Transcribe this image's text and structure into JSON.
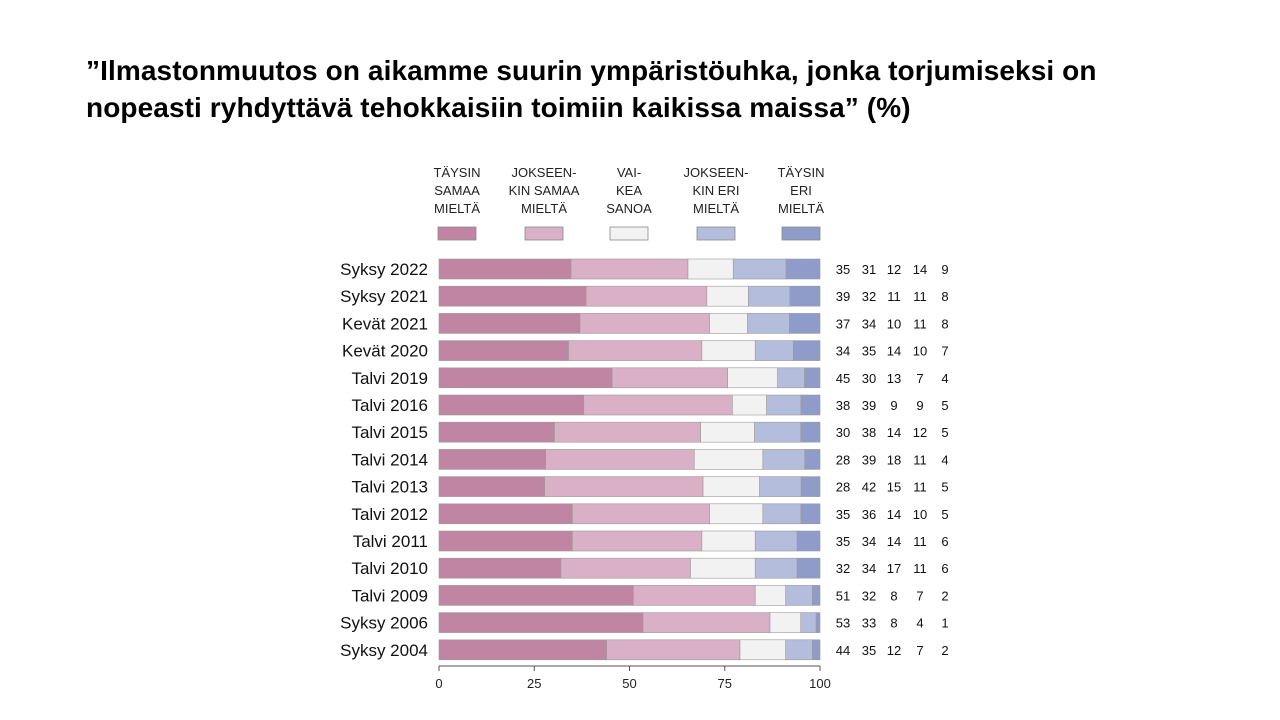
{
  "title": {
    "line1": "”Ilmastonmuutos on aikamme suurin ympäristöuhka, jonka torjumiseksi on",
    "line2": "nopeasti ryhdyttävä tehokkaisiin toimiin kaikissa maissa” (%)"
  },
  "chart_data": {
    "type": "bar",
    "orientation": "horizontal",
    "stacked": true,
    "categories": [
      "Syksy 2022",
      "Syksy 2021",
      "Kevät 2021",
      "Kevät 2020",
      "Talvi 2019",
      "Talvi 2016",
      "Talvi 2015",
      "Talvi 2014",
      "Talvi 2013",
      "Talvi 2012",
      "Talvi 2011",
      "Talvi 2010",
      "Talvi 2009",
      "Syksy 2006",
      "Syksy 2004"
    ],
    "series": [
      {
        "name": "TÄYSIN SAMAA MIELTÄ",
        "label_lines": [
          "TÄYSIN",
          "SAMAA",
          "MIELTÄ"
        ],
        "color": "#bf85a3",
        "values": [
          35,
          39,
          37,
          34,
          45,
          38,
          30,
          28,
          28,
          35,
          35,
          32,
          51,
          53,
          44
        ]
      },
      {
        "name": "JOKSEEN-KIN SAMAA MIELTÄ",
        "label_lines": [
          "JOKSEEN-",
          "KIN SAMAA",
          "MIELTÄ"
        ],
        "color": "#d9b0c5",
        "values": [
          31,
          32,
          34,
          35,
          30,
          39,
          38,
          39,
          42,
          36,
          34,
          34,
          32,
          33,
          35
        ]
      },
      {
        "name": "VAI-KEA SANOA",
        "label_lines": [
          "VAI-",
          "KEA",
          "SANOA"
        ],
        "color": "#f2f2f2",
        "values": [
          12,
          11,
          10,
          14,
          13,
          9,
          14,
          18,
          15,
          14,
          14,
          17,
          8,
          8,
          12
        ]
      },
      {
        "name": "JOKSEEN-KIN ERI MIELTÄ",
        "label_lines": [
          "JOKSEEN-",
          "KIN ERI",
          "MIELTÄ"
        ],
        "color": "#b5bddc",
        "values": [
          14,
          11,
          11,
          10,
          7,
          9,
          12,
          11,
          11,
          10,
          11,
          11,
          7,
          4,
          7
        ]
      },
      {
        "name": "TÄYSIN ERI MIELTÄ",
        "label_lines": [
          "TÄYSIN",
          "ERI",
          "MIELTÄ"
        ],
        "color": "#8f9cca",
        "values": [
          9,
          8,
          8,
          7,
          4,
          5,
          5,
          4,
          5,
          5,
          6,
          6,
          2,
          1,
          2
        ]
      }
    ],
    "xlim": [
      0,
      100
    ],
    "xticks": [
      "0",
      "25",
      "50",
      "75",
      "100"
    ],
    "legend": "top",
    "grid": false,
    "value_columns": true
  }
}
